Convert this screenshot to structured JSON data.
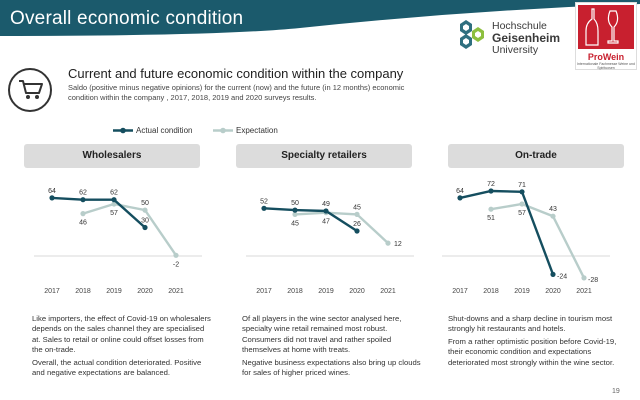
{
  "header": {
    "title": "Overall economic condition"
  },
  "logos": {
    "hochschule": [
      "Hochschule",
      "Geisenheim",
      "University"
    ],
    "prowein": {
      "name": "ProWein",
      "tagline": "Internationale Fachmesse Weine und Spirituosen"
    }
  },
  "section": {
    "title": "Current and future economic condition within the company",
    "subtitle": "Saldo (positive minus negative opinions) for the current (now) and the future (in 12 months) economic condition within the company , 2017, 2018, 2019 and 2020 surveys results."
  },
  "legend": {
    "actual": "Actual condition",
    "expectation": "Expectation"
  },
  "colors": {
    "actual": "#154e5f",
    "expectation": "#b8cdca",
    "header_bar": "#1b5a6c",
    "prowein": "#c8202f"
  },
  "chart_data": [
    {
      "type": "line",
      "title": "Wholesalers",
      "categories": [
        "2017",
        "2018",
        "2019",
        "2020",
        "2021"
      ],
      "ylim": [
        -35,
        80
      ],
      "series": [
        {
          "name": "Actual condition",
          "values": [
            64,
            62,
            62,
            30,
            null
          ],
          "labels": [
            "64",
            "62",
            "62",
            "30",
            ""
          ]
        },
        {
          "name": "Expectation",
          "values": [
            null,
            46,
            57,
            50,
            -2
          ],
          "labels": [
            "",
            "46",
            "57",
            "50",
            "-2"
          ]
        }
      ]
    },
    {
      "type": "line",
      "title": "Specialty retailers",
      "categories": [
        "2017",
        "2018",
        "2019",
        "2020",
        "2021"
      ],
      "ylim": [
        -35,
        80
      ],
      "series": [
        {
          "name": "Actual condition",
          "values": [
            52,
            50,
            49,
            26,
            null
          ],
          "labels": [
            "52",
            "50",
            "49",
            "26",
            ""
          ]
        },
        {
          "name": "Expectation",
          "values": [
            null,
            45,
            47,
            45,
            12
          ],
          "labels": [
            "",
            "45",
            "47",
            "45",
            "12"
          ]
        }
      ]
    },
    {
      "type": "line",
      "title": "On-trade",
      "categories": [
        "2017",
        "2018",
        "2019",
        "2020",
        "2021"
      ],
      "ylim": [
        -35,
        80
      ],
      "series": [
        {
          "name": "Actual condition",
          "values": [
            64,
            72,
            71,
            -24,
            null
          ],
          "labels": [
            "64",
            "72",
            "71",
            "-24",
            ""
          ]
        },
        {
          "name": "Expectation",
          "values": [
            null,
            51,
            57,
            43,
            -28
          ],
          "labels": [
            "",
            "51",
            "57",
            "43",
            "-28"
          ]
        }
      ]
    }
  ],
  "panels": [
    {
      "text": [
        "Like importers, the effect of Covid-19 on wholesalers depends on the sales channel they are specialised at. Sales to retail or online could offset losses from the on-trade.",
        "Overall, the actual condition deteriorated. Positive and negative expectations are balanced."
      ]
    },
    {
      "text": [
        "Of all players in the wine sector analysed here, specialty wine retail remained most robust. Consumers did not travel and rather spoiled themselves at home with treats.",
        "Negative business expectations also bring up clouds for sales of higher priced wines."
      ]
    },
    {
      "text": [
        "Shut-downs and a sharp decline in tourism most strongly hit restaurants and hotels.",
        "From a rather optimistic position before Covid-19, their economic condition and expectations deteriorated most strongly within the wine sector."
      ]
    }
  ],
  "footer": {
    "page_number": "19"
  }
}
